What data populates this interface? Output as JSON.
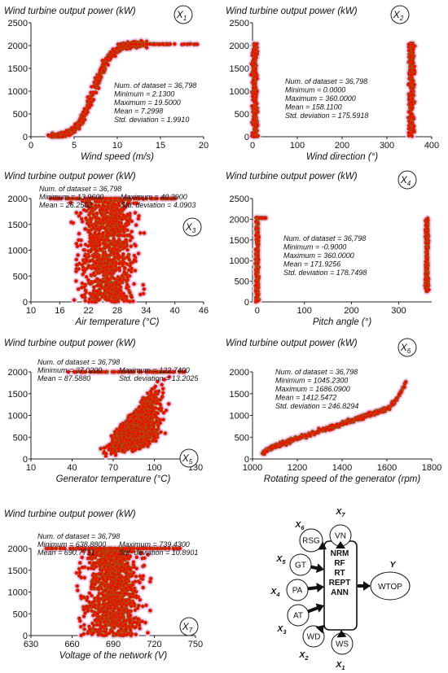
{
  "chart_data": [
    {
      "id": "X1",
      "type": "scatter",
      "title": "Wind turbine output power (kW)",
      "xlabel": "Wind speed (m/s)",
      "ylabel": "",
      "badge": {
        "main": "X",
        "sub": "1"
      },
      "xlim": [
        0,
        20
      ],
      "ylim": [
        0,
        2500
      ],
      "xticks": [
        "0",
        "5",
        "10",
        "15",
        "20"
      ],
      "yticks": [
        "0",
        "500",
        "1000",
        "1500",
        "2000",
        "2500"
      ],
      "stats": [
        "Num. of dataset = 36,798",
        "Minimum = 2.1300",
        "Maximum = 19.5000",
        "Mean = 7.2998",
        "Std. deviation = 1.9910"
      ],
      "stats_layout": "column",
      "shape": "power-curve"
    },
    {
      "id": "X2",
      "type": "scatter",
      "title": "Wind turbine output power (kW)",
      "xlabel": "Wind direction (°)",
      "ylabel": "",
      "badge": {
        "main": "X",
        "sub": "2"
      },
      "xlim": [
        0,
        400
      ],
      "ylim": [
        0,
        2500
      ],
      "xticks": [
        "0",
        "100",
        "200",
        "300",
        "400"
      ],
      "yticks": [
        "0",
        "500",
        "1000",
        "1500",
        "2000",
        "2500"
      ],
      "stats": [
        "Num. of dataset = 36,798",
        "Minimum = 0.0000",
        "Maximum = 360.0000",
        "Mean = 158.1100",
        "Std. deviation = 175.5918"
      ],
      "stats_layout": "column",
      "shape": "two-bands",
      "bands": [
        5,
        355
      ]
    },
    {
      "id": "X3",
      "type": "scatter",
      "title": "Wind turbine output power (kW)",
      "xlabel": "Air temperature (°C)",
      "ylabel": "",
      "badge": {
        "main": "X",
        "sub": "3"
      },
      "xlim": [
        10,
        46
      ],
      "ylim": [
        0,
        2000
      ],
      "xticks": [
        "10",
        "16",
        "22",
        "28",
        "34",
        "40",
        "46"
      ],
      "yticks": [
        "0",
        "500",
        "1000",
        "1500",
        "2000"
      ],
      "stats": [
        "Num. of dataset = 36,798",
        "Minimum = 13.9600",
        "Maximum = 40.3900",
        "Mean = 26.2502",
        "Std. deviation = 4.0903"
      ],
      "stats_layout": "grid",
      "shape": "cloud",
      "cloud": [
        14,
        40.4,
        26,
        37
      ]
    },
    {
      "id": "X4",
      "type": "scatter",
      "title": "Wind turbine output power (kW)",
      "xlabel": "Pitch angle (°)",
      "ylabel": "",
      "badge": {
        "main": "X",
        "sub": "4"
      },
      "xlim": [
        -10,
        370
      ],
      "ylim": [
        0,
        2500
      ],
      "xticks": [
        "0",
        "100",
        "200",
        "300"
      ],
      "xtick_values": [
        0,
        100,
        200,
        300
      ],
      "yticks": [
        "0",
        "500",
        "1000",
        "1500",
        "2000",
        "2500"
      ],
      "stats": [
        "Num. of dataset = 36,798",
        "Minimum = -0.9000",
        "Maximum = 360.0000",
        "Mean = 171.9256",
        "Std. deviation = 178.7498"
      ],
      "stats_layout": "column",
      "shape": "two-bands-narrow",
      "bands": [
        0,
        360
      ]
    },
    {
      "id": "X5",
      "type": "scatter",
      "title": "Wind turbine output power (kW)",
      "xlabel": "Generator temperature (°C)",
      "ylabel": "",
      "badge": {
        "main": "X",
        "sub": "5"
      },
      "xlim": [
        10,
        130
      ],
      "ylim": [
        0,
        2000
      ],
      "xticks": [
        "10",
        "40",
        "70",
        "100",
        "130"
      ],
      "yticks": [
        "0",
        "500",
        "1000",
        "1500",
        "2000"
      ],
      "stats": [
        "Num. of dataset = 36,798",
        "Minimum = 37.0200",
        "Maximum = 122.7400",
        "Mean = 87.5880",
        "Std. deviation = 13.2025"
      ],
      "stats_layout": "grid",
      "shape": "ramp",
      "cloud": [
        37,
        122.7,
        87,
        120
      ]
    },
    {
      "id": "X6",
      "type": "scatter",
      "title": "Wind turbine output power (kW)",
      "xlabel": "Rotating speed of the generator (rpm)",
      "ylabel": "",
      "badge": {
        "main": "X",
        "sub": "6"
      },
      "xlim": [
        1000,
        1800
      ],
      "ylim": [
        0,
        2000
      ],
      "xticks": [
        "1000",
        "1200",
        "1400",
        "1600",
        "1800"
      ],
      "yticks": [
        "0",
        "500",
        "1000",
        "1500",
        "2000"
      ],
      "stats": [
        "Num. of dataset = 36,798",
        "Minimum = 1045.2300",
        "Maximum = 1686.0900",
        "Mean = 1412.5472",
        "Std. deviation = 246.8294"
      ],
      "stats_layout": "column",
      "shape": "s-curve",
      "range": [
        1045,
        1686
      ]
    },
    {
      "id": "X7",
      "type": "scatter",
      "title": "Wind turbine output power (kW)",
      "xlabel": "Voltage of the network (V)",
      "ylabel": "",
      "badge": {
        "main": "X",
        "sub": "7"
      },
      "xlim": [
        630,
        750
      ],
      "ylim": [
        0,
        2000
      ],
      "xticks": [
        "630",
        "660",
        "690",
        "720",
        "750"
      ],
      "yticks": [
        "0",
        "500",
        "1000",
        "1500",
        "2000"
      ],
      "stats": [
        "Num. of dataset = 36,798",
        "Minimum = 638.8800",
        "Maximum = 739.4300",
        "Mean = 690.7731",
        "Std. deviation = 10.8901"
      ],
      "stats_layout": "grid",
      "shape": "cloud",
      "cloud": [
        639,
        739,
        690,
        720
      ]
    }
  ],
  "diagram": {
    "center_lines": [
      "NRM",
      "RF",
      "RT",
      "REPT",
      "ANN"
    ],
    "output_node": "WTOP",
    "output_label": "Y",
    "inputs": [
      {
        "node": "WS",
        "label": "X",
        "sub": "1"
      },
      {
        "node": "WD",
        "label": "X",
        "sub": "2"
      },
      {
        "node": "AT",
        "label": "X",
        "sub": "3"
      },
      {
        "node": "PA",
        "label": "X",
        "sub": "4"
      },
      {
        "node": "GT",
        "label": "X",
        "sub": "5"
      },
      {
        "node": "RSG",
        "label": "X",
        "sub": "6"
      },
      {
        "node": "VN",
        "label": "X",
        "sub": "7"
      }
    ]
  },
  "colors": {
    "marker_fill": "#ff0000",
    "marker_edge": "#8a6a10",
    "halo": "#f3c6f3",
    "badge_border": "#222222"
  }
}
